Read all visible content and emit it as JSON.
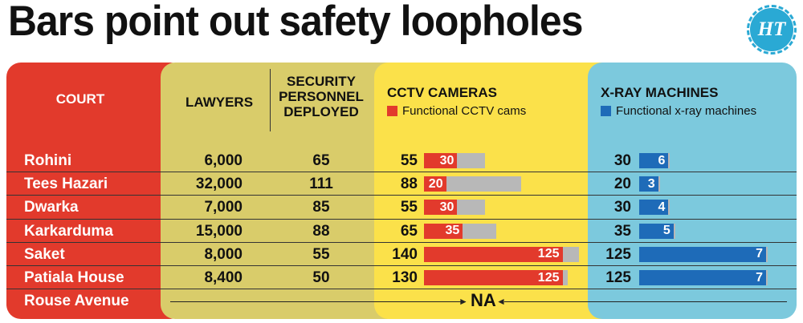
{
  "title": "Bars point out safety loopholes",
  "logo": "HT",
  "headers": {
    "court": "COURT",
    "lawyers": "LAWYERS",
    "security": [
      "SECURITY",
      "PERSONNEL",
      "DEPLOYED"
    ],
    "cctv": "CCTV CAMERAS",
    "cctv_legend": "Functional CCTV cams",
    "xray": "X-RAY MACHINES",
    "xray_legend": "Functional x-ray machines"
  },
  "colors": {
    "red": "#e23a2c",
    "blue": "#1e6bb8",
    "grey": "#b8b8b8"
  },
  "na_label": "NA",
  "chart_data": {
    "type": "table",
    "columns": [
      "COURT",
      "LAWYERS",
      "SECURITY PERSONNEL DEPLOYED",
      "CCTV CAMERAS",
      "Functional CCTV cams",
      "X-RAY MACHINES",
      "Functional x-ray machines"
    ],
    "rows": [
      {
        "court": "Rohini",
        "lawyers": "6,000",
        "security": "65",
        "cctv": 55,
        "cctv_functional": 30,
        "xray": 30,
        "xray_functional": 6
      },
      {
        "court": "Tees Hazari",
        "lawyers": "32,000",
        "security": "111",
        "cctv": 88,
        "cctv_functional": 20,
        "xray": 20,
        "xray_functional": 3
      },
      {
        "court": "Dwarka",
        "lawyers": "7,000",
        "security": "85",
        "cctv": 55,
        "cctv_functional": 30,
        "xray": 30,
        "xray_functional": 4
      },
      {
        "court": "Karkarduma",
        "lawyers": "15,000",
        "security": "88",
        "cctv": 65,
        "cctv_functional": 35,
        "xray": 35,
        "xray_functional": 5
      },
      {
        "court": "Saket",
        "lawyers": "8,000",
        "security": "55",
        "cctv": 140,
        "cctv_functional": 125,
        "xray": 125,
        "xray_functional": 7
      },
      {
        "court": "Patiala House",
        "lawyers": "8,400",
        "security": "50",
        "cctv": 130,
        "cctv_functional": 125,
        "xray": 125,
        "xray_functional": 7
      },
      {
        "court": "Rouse Avenue",
        "lawyers": null,
        "security": null,
        "cctv": null,
        "cctv_functional": null,
        "xray": null,
        "xray_functional": null
      }
    ]
  }
}
